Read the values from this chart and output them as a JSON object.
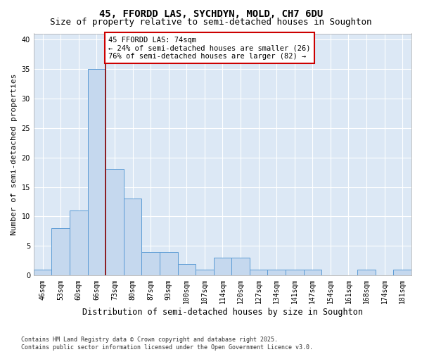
{
  "title1": "45, FFORDD LAS, SYCHDYN, MOLD, CH7 6DU",
  "title2": "Size of property relative to semi-detached houses in Soughton",
  "xlabel": "Distribution of semi-detached houses by size in Soughton",
  "ylabel": "Number of semi-detached properties",
  "bins": [
    "46sqm",
    "53sqm",
    "60sqm",
    "66sqm",
    "73sqm",
    "80sqm",
    "87sqm",
    "93sqm",
    "100sqm",
    "107sqm",
    "114sqm",
    "120sqm",
    "127sqm",
    "134sqm",
    "141sqm",
    "147sqm",
    "154sqm",
    "161sqm",
    "168sqm",
    "174sqm",
    "181sqm"
  ],
  "values": [
    1,
    8,
    11,
    35,
    18,
    13,
    4,
    4,
    2,
    1,
    3,
    3,
    1,
    1,
    1,
    1,
    0,
    0,
    1,
    0,
    1
  ],
  "bar_color": "#c5d8ee",
  "bar_edge_color": "#5b9bd5",
  "property_line_index": 3,
  "annotation_text": "45 FFORDD LAS: 74sqm\n← 24% of semi-detached houses are smaller (26)\n76% of semi-detached houses are larger (82) →",
  "annotation_box_color": "#ffffff",
  "annotation_box_edge": "#cc0000",
  "property_line_color": "#8b0000",
  "ylim": [
    0,
    41
  ],
  "yticks": [
    0,
    5,
    10,
    15,
    20,
    25,
    30,
    35,
    40
  ],
  "footer": "Contains HM Land Registry data © Crown copyright and database right 2025.\nContains public sector information licensed under the Open Government Licence v3.0.",
  "bg_color": "#dce8f5",
  "grid_color": "#ffffff",
  "title_fontsize": 10,
  "subtitle_fontsize": 9,
  "annotation_fontsize": 7.5,
  "tick_fontsize": 7,
  "ylabel_fontsize": 8,
  "xlabel_fontsize": 8.5,
  "footer_fontsize": 6
}
